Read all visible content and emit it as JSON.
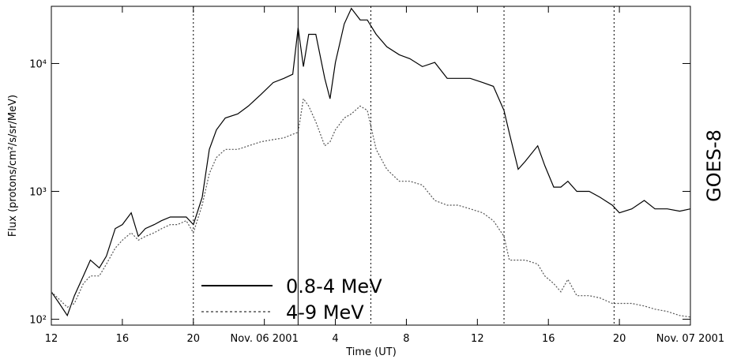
{
  "chart_data": {
    "type": "line",
    "x_label": "Time (UT)",
    "y_label": "Flux (protons/cm²/s/sr/MeV)",
    "side_label": "GOES-8",
    "log_y": true,
    "legend": "bottom-left",
    "x": [
      12.0,
      12.45,
      12.9,
      13.3,
      13.8,
      14.2,
      14.7,
      15.1,
      15.6,
      16.0,
      16.5,
      16.9,
      17.3,
      17.8,
      18.2,
      18.7,
      19.1,
      19.6,
      20.0,
      20.5,
      20.9,
      21.3,
      21.8,
      22.5,
      23.1,
      23.8,
      24.5,
      25.1,
      25.6,
      25.9,
      26.2,
      26.5,
      26.9,
      27.4,
      27.7,
      28.0,
      28.5,
      28.9,
      29.4,
      29.8,
      30.3,
      30.9,
      31.6,
      32.2,
      32.9,
      33.6,
      34.3,
      34.9,
      35.6,
      36.3,
      36.9,
      37.5,
      37.8,
      38.3,
      38.7,
      39.4,
      39.8,
      40.3,
      40.7,
      41.1,
      41.6,
      42.3,
      42.9,
      43.6,
      44.0,
      44.7,
      45.4,
      46.0,
      46.7,
      47.4,
      48.0
    ],
    "series": [
      {
        "name": "0.8-4 MeV",
        "color": "#000000",
        "dash": "solid",
        "values": [
          164,
          133,
          107,
          153,
          218,
          290,
          252,
          312,
          512,
          550,
          680,
          445,
          512,
          550,
          590,
          630,
          630,
          630,
          550,
          900,
          2130,
          3030,
          3750,
          4040,
          4650,
          5720,
          7100,
          7650,
          8240,
          19000,
          9460,
          16900,
          16900,
          7650,
          5300,
          10200,
          20400,
          27000,
          21900,
          21900,
          16900,
          13500,
          11700,
          10900,
          9460,
          10200,
          7650,
          7650,
          7650,
          7100,
          6630,
          4300,
          2850,
          1490,
          1720,
          2270,
          1590,
          1080,
          1080,
          1200,
          1000,
          1000,
          900,
          780,
          680,
          730,
          850,
          730,
          730,
          700,
          730
        ]
      },
      {
        "name": "4-9 MeV",
        "color": "#555555",
        "legend_color": "#888888",
        "dash": "dotted",
        "values": [
          164,
          143,
          124,
          133,
          190,
          218,
          218,
          270,
          360,
          415,
          475,
          415,
          445,
          475,
          510,
          550,
          550,
          590,
          475,
          785,
          1380,
          1840,
          2130,
          2130,
          2270,
          2440,
          2540,
          2620,
          2800,
          2900,
          5300,
          4650,
          3500,
          2270,
          2440,
          3030,
          3750,
          4040,
          4650,
          4300,
          2130,
          1490,
          1200,
          1200,
          1120,
          850,
          780,
          780,
          730,
          680,
          590,
          445,
          290,
          290,
          290,
          270,
          218,
          190,
          164,
          205,
          153,
          153,
          147,
          133,
          133,
          133,
          127,
          120,
          115,
          107,
          104
        ]
      }
    ],
    "xlim": [
      12,
      48
    ],
    "xticks": [
      12,
      16,
      20,
      {
        "value": 24,
        "label": "Nov. 06 2001"
      },
      {
        "value": 28,
        "label": "4"
      },
      {
        "value": 32,
        "label": "8"
      },
      {
        "value": 36,
        "label": "12"
      },
      {
        "value": 40,
        "label": "16"
      },
      {
        "value": 44,
        "label": "20"
      },
      {
        "value": 48,
        "label": "Nov. 07 2001"
      }
    ],
    "ylim": [
      90,
      28000
    ],
    "yticks": [
      {
        "value": 100,
        "label": "10²"
      },
      {
        "value": 1000,
        "label": "10³"
      },
      {
        "value": 10000,
        "label": "10⁴"
      }
    ],
    "dotted_vlines": [
      20,
      30,
      37.5,
      43.7
    ],
    "solid_vlines": [
      25.9
    ]
  }
}
